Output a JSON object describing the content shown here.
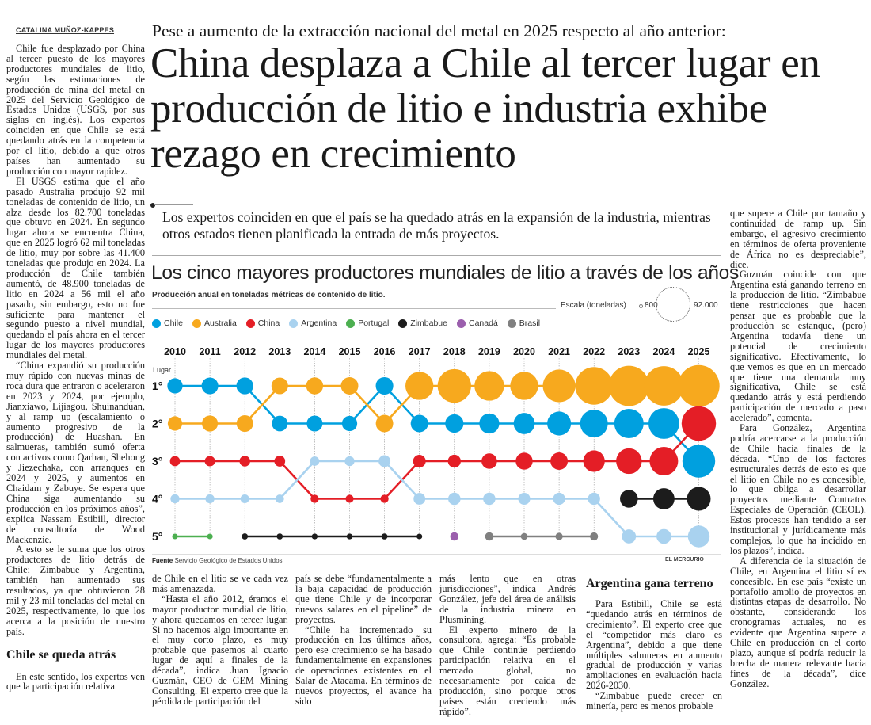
{
  "byline": "CATALINA MUÑOZ-KAPPES",
  "kicker": "Pese a aumento de la extracción nacional del metal en 2025 respecto al año anterior:",
  "headline": "China desplaza a Chile al tercer lugar en producción de litio e industria exhibe rezago en crecimiento",
  "deck": "Los expertos coinciden en que el país se ha quedado atrás en la expansión de la industria, mientras otros estados tienen planificada la entrada de más proyectos.",
  "left_column": {
    "paragraphs": [
      "Chile fue desplazado por China al tercer puesto de los mayores productores mundiales de litio, según las estimaciones de producción de mina del metal en 2025 del Servicio Geológico de Estados Unidos (USGS, por sus siglas en inglés). Los expertos coinciden en que Chile se está quedando atrás en la competencia por el litio, debido a que otros países han aumentado su producción con mayor rapidez.",
      "El USGS estima que el año pasado Australia produjo 92 mil toneladas de contenido de litio, un alza desde los 82.700 toneladas que obtuvo en 2024. En segundo lugar ahora se encuentra China, que en 2025 logró 62 mil toneladas de litio, muy por sobre las 41.400 toneladas que produjo en 2024. La producción de Chile también aumentó, de 48.900 toneladas de litio en 2024 a 56 mil el año pasado, sin embargo, esto no fue suficiente para mantener el segundo puesto a nivel mundial, quedando el país ahora en el tercer lugar de los mayores productores mundiales del metal.",
      "“China expandió su producción muy rápido con nuevas minas de roca dura que entraron o aceleraron en 2023 y 2024, por ejemplo, Jianxiawo, Lijiagou, Shuinanduan, y al ramp up (escalamiento o aumento progresivo de la producción) de Huashan. En salmueras, también sumó oferta con activos como Qarhan, Shehong y Jiezechaka, con arranques en 2024 y 2025, y aumentos en Chaidam y Zabuye. Se espera que China siga aumentando su producción en los próximos años”, explica Nassam Estibill, director de consultoría de Wood Mackenzie.",
      "A esto se le suma que los otros productores de litio detrás de Chile; Zimbabue y Argentina, también han aumentado sus resultados, ya que obtuvieron 28 mil y 23 mil toneladas del metal en 2025, respectivamente, lo que los acerca a la posición de nuestro país."
    ],
    "subhead": "Chile se queda atrás",
    "after_subhead": "En este sentido, los expertos ven que la participación relativa"
  },
  "bottom_columns": [
    {
      "paragraphs": [
        "de Chile en el litio se ve cada vez más amenazada.",
        "“Hasta el año 2012, éramos el mayor productor mundial de litio, y ahora quedamos en tercer lugar. Si no hacemos algo importante en el muy corto plazo, es muy probable que pasemos al cuarto lugar de aquí a finales de la década”, indica Juan Ignacio Guzmán, CEO de GEM Mining Consulting. El experto cree que la pérdida de participación del"
      ]
    },
    {
      "paragraphs": [
        "país se debe “fundamentalmente a la baja capacidad de producción que tiene Chile y de incorporar nuevos salares en el pipeline” de proyectos.",
        "“Chile ha incrementado su producción en los últimos años, pero ese crecimiento se ha basado fundamentalmente en expansiones de operaciones existentes en el Salar de Atacama. En términos de nuevos proyectos, el avance ha sido"
      ]
    },
    {
      "paragraphs": [
        "más lento que en otras jurisdicciones”, indica Andrés González, jefe del área de análisis de la industria minera en Plusmining.",
        "El experto minero de la consultora, agrega: “Es probable que Chile continúe perdiendo participación relativa en el mercado global, no necesariamente por caída de producción, sino porque otros países están creciendo más rápido”."
      ]
    },
    {
      "subhead": "Argentina gana terreno",
      "paragraphs": [
        "Para Estibill, Chile se está “quedando atrás en términos de crecimiento”. El experto cree que el “competidor más claro es Argentina”, debido a que tiene múltiples salmueras en aumento gradual de producción y varias ampliaciones en evaluación hacia 2026-2030.",
        "“Zimbabue puede crecer en minería, pero es menos probable"
      ]
    }
  ],
  "right_column": {
    "paragraphs": [
      "que supere a Chile por tamaño y continuidad de ramp up. Sin embargo, el agresivo crecimiento en términos de oferta proveniente de África no es despreciable”, dice.",
      "Guzmán coincide con que Argentina está ganando terreno en la producción de litio. “Zimbabue tiene restricciones que hacen pensar que es probable que la producción se estanque, (pero) Argentina todavía tiene un potencial de crecimiento significativo. Efectivamente, lo que vemos es que en un mercado que tiene una demanda muy significativa, Chile se está quedando atrás y está perdiendo participación de mercado a paso acelerado”, comenta.",
      "Para González, Argentina podría acercarse a la producción de Chile hacia finales de la década. “Uno de los factores estructurales detrás de esto es que el litio en Chile no es concesible, lo que obliga a desarrollar proyectos mediante Contratos Especiales de Operación (CEOL). Estos procesos han tendido a ser institucional y jurídicamente más complejos, lo que ha incidido en los plazos”, indica.",
      "A diferencia de la situación de Chile, en Argentina el litio sí es concesible. En ese país “existe un portafolio amplio de proyectos en distintas etapas de desarrollo. No obstante, considerando los cronogramas actuales, no es evidente que Argentina supere a Chile en producción en el corto plazo, aunque sí podría reducir la brecha de manera relevante hacia fines de la década”, dice González."
    ]
  },
  "chart_data": {
    "type": "bump-bubble",
    "title": "Los cinco mayores productores mundiales de litio a través de los años",
    "subtitle": "Producción anual en toneladas métricas de contenido de litio.",
    "scale_label": "Escala (toneladas)",
    "scale_min": "800",
    "scale_max": "92.000",
    "scale_values": [
      800,
      92000
    ],
    "ylabel": "Lugar",
    "rank_labels": [
      "1°",
      "2°",
      "3°",
      "4°",
      "5°"
    ],
    "years": [
      "2010",
      "2011",
      "2012",
      "2013",
      "2014",
      "2015",
      "2016",
      "2017",
      "2018",
      "2019",
      "2020",
      "2021",
      "2022",
      "2023",
      "2024",
      "2025"
    ],
    "series": [
      {
        "name": "Chile",
        "color": "#00a0df",
        "ranks": [
          1,
          1,
          1,
          2,
          2,
          2,
          1,
          2,
          2,
          2,
          2,
          2,
          2,
          2,
          2,
          3
        ],
        "values": [
          10510,
          12900,
          13200,
          11200,
          11500,
          10500,
          14300,
          14200,
          16000,
          19300,
          21900,
          28300,
          39000,
          44000,
          48900,
          56000
        ]
      },
      {
        "name": "Australia",
        "color": "#f7a91e",
        "ranks": [
          2,
          2,
          2,
          1,
          1,
          1,
          2,
          1,
          1,
          1,
          1,
          1,
          1,
          1,
          1,
          1
        ],
        "values": [
          9260,
          11700,
          12800,
          12700,
          13300,
          14100,
          14000,
          40000,
          58800,
          45000,
          40000,
          55300,
          74700,
          86000,
          82700,
          92000
        ]
      },
      {
        "name": "China",
        "color": "#e41e26",
        "ranks": [
          3,
          3,
          3,
          3,
          4,
          4,
          4,
          3,
          3,
          3,
          3,
          3,
          3,
          3,
          3,
          2
        ],
        "values": [
          3950,
          4140,
          4500,
          4700,
          2300,
          2200,
          2300,
          6800,
          7100,
          10800,
          13300,
          14000,
          22600,
          33000,
          41400,
          62000
        ]
      },
      {
        "name": "Argentina",
        "color": "#a9d2ef",
        "ranks": [
          4,
          4,
          4,
          4,
          3,
          3,
          3,
          4,
          4,
          4,
          4,
          4,
          4,
          5,
          5,
          5
        ],
        "values": [
          2950,
          2950,
          2700,
          2500,
          3200,
          3600,
          5800,
          5700,
          6400,
          6300,
          5900,
          5970,
          6200,
          8600,
          9600,
          23000
        ]
      },
      {
        "name": "Portugal",
        "color": "#4caf50",
        "ranks": [
          5,
          5,
          null,
          null,
          null,
          null,
          null,
          null,
          null,
          null,
          null,
          null,
          null,
          null,
          null,
          null
        ],
        "values": [
          800,
          820,
          null,
          null,
          null,
          null,
          null,
          null,
          null,
          null,
          null,
          null,
          null,
          null,
          null,
          null
        ]
      },
      {
        "name": "Zimbabue",
        "color": "#1c1c1c",
        "ranks": [
          null,
          null,
          5,
          5,
          5,
          5,
          5,
          5,
          null,
          null,
          null,
          null,
          null,
          4,
          4,
          4
        ],
        "values": [
          null,
          null,
          1060,
          1000,
          900,
          900,
          1000,
          800,
          null,
          null,
          null,
          null,
          null,
          14900,
          22000,
          28000
        ]
      },
      {
        "name": "Canadá",
        "color": "#9b5fad",
        "ranks": [
          null,
          null,
          null,
          null,
          null,
          null,
          null,
          null,
          5,
          null,
          null,
          null,
          null,
          null,
          null,
          null
        ],
        "values": [
          null,
          null,
          null,
          null,
          null,
          null,
          null,
          null,
          2400,
          null,
          null,
          null,
          null,
          null,
          null,
          null
        ]
      },
      {
        "name": "Brasil",
        "color": "#808080",
        "ranks": [
          null,
          null,
          null,
          null,
          null,
          null,
          null,
          null,
          null,
          5,
          5,
          5,
          5,
          null,
          null,
          null
        ],
        "values": [
          null,
          null,
          null,
          null,
          null,
          null,
          null,
          null,
          null,
          2400,
          1420,
          1700,
          2200,
          null,
          null,
          null
        ]
      }
    ],
    "source_label": "Fuente",
    "source": "Servicio Geológico de Estados Unidos",
    "credit": "EL MERCURIO"
  }
}
